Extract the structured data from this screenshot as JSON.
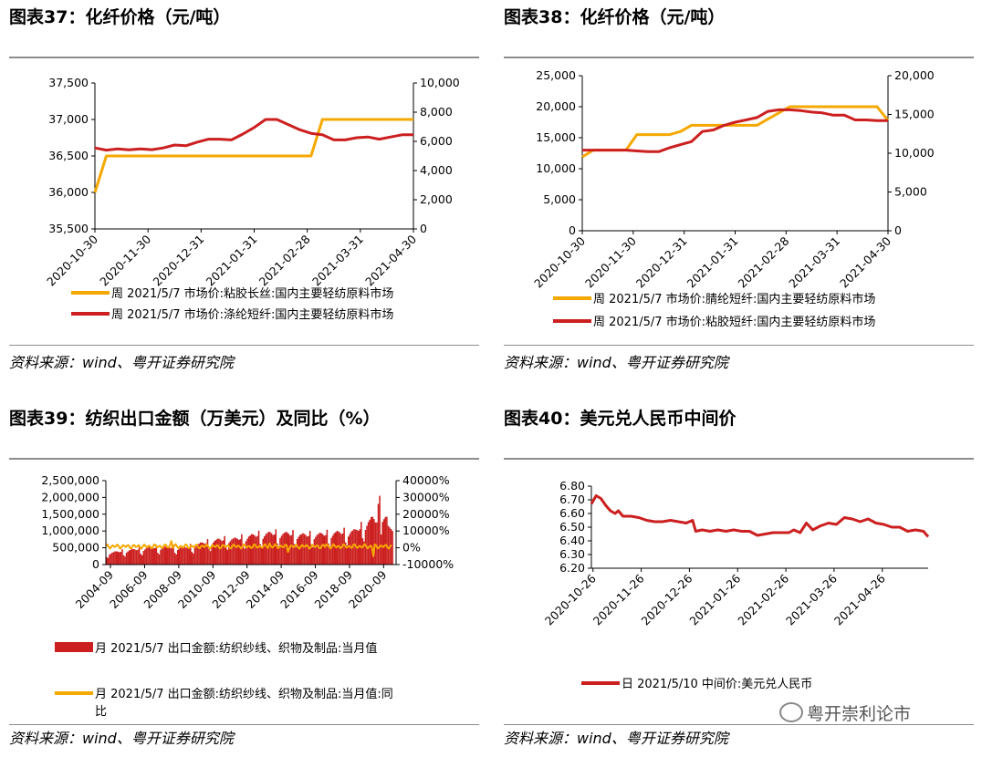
{
  "panels": [
    {
      "title": "图表37：化纤价格（元/吨）",
      "source": "资料来源：wind、粤开证券研究院"
    },
    {
      "title": "图表38：化纤价格（元/吨）",
      "source": "资料来源：wind、粤开证券研究院"
    },
    {
      "title": "图表39：纺织出口金额（万美元）及同比（%）",
      "source": "资料来源：wind、粤开证券研究院"
    },
    {
      "title": "图表40：美元兑人民币中间价",
      "source": "资料来源：wind、粤开证券研究院"
    }
  ],
  "watermark": "粤开崇利论市",
  "colors": {
    "orange": "#F5A800",
    "red": "#CC1F1F",
    "axis": "#000000"
  },
  "chart_data": [
    {
      "type": "line",
      "x_ticks": [
        "2020-10-30",
        "2020-11-30",
        "2020-12-31",
        "2021-01-31",
        "2021-02-28",
        "2021-03-31",
        "2021-04-30"
      ],
      "y_left_ticks": [
        "37,500",
        "37,000",
        "36,500",
        "36,000",
        "35,500"
      ],
      "y_left_range": [
        35500,
        37500
      ],
      "y_right_ticks": [
        "10,000",
        "8,000",
        "6,000",
        "4,000",
        "2,000",
        "0"
      ],
      "y_right_range": [
        0,
        10000
      ],
      "series": [
        {
          "name": "周 2021/5/7 市场价:粘胶长丝:国内主要轻纺原料市场",
          "axis": "left",
          "color": "orange",
          "points": [
            [
              0,
              36000
            ],
            [
              1,
              36500
            ],
            [
              2,
              36500
            ],
            [
              4,
              36500
            ],
            [
              6,
              36500
            ],
            [
              8,
              36500
            ],
            [
              10,
              36500
            ],
            [
              12,
              36500
            ],
            [
              14,
              36500
            ],
            [
              16,
              36500
            ],
            [
              18,
              36500
            ],
            [
              19,
              36500
            ],
            [
              20,
              37000
            ],
            [
              22,
              37000
            ],
            [
              24,
              37000
            ],
            [
              26,
              37000
            ],
            [
              28,
              37000
            ]
          ]
        },
        {
          "name": "周 2021/5/7 市场价:涤纶短纤:国内主要轻纺原料市场",
          "axis": "right",
          "color": "red",
          "points": [
            [
              0,
              5550
            ],
            [
              1,
              5400
            ],
            [
              2,
              5480
            ],
            [
              3,
              5420
            ],
            [
              4,
              5480
            ],
            [
              5,
              5430
            ],
            [
              6,
              5550
            ],
            [
              7,
              5750
            ],
            [
              8,
              5700
            ],
            [
              9,
              5950
            ],
            [
              10,
              6150
            ],
            [
              11,
              6150
            ],
            [
              12,
              6100
            ],
            [
              13,
              6500
            ],
            [
              14,
              6950
            ],
            [
              15,
              7500
            ],
            [
              16,
              7500
            ],
            [
              17,
              7150
            ],
            [
              18,
              6800
            ],
            [
              19,
              6550
            ],
            [
              20,
              6450
            ],
            [
              21,
              6100
            ],
            [
              22,
              6100
            ],
            [
              23,
              6250
            ],
            [
              24,
              6300
            ],
            [
              25,
              6150
            ],
            [
              26,
              6300
            ],
            [
              27,
              6450
            ],
            [
              28,
              6450
            ]
          ]
        }
      ]
    },
    {
      "type": "line",
      "x_ticks": [
        "2020-10-30",
        "2020-11-30",
        "2020-12-31",
        "2021-01-31",
        "2021-02-28",
        "2021-03-31",
        "2021-04-30"
      ],
      "y_left_ticks": [
        "25,000",
        "20,000",
        "15,000",
        "10,000",
        "5,000",
        "0"
      ],
      "y_left_range": [
        0,
        25000
      ],
      "y_right_ticks": [
        "20,000",
        "15,000",
        "10,000",
        "5,000",
        "0"
      ],
      "y_right_range": [
        0,
        20000
      ],
      "series": [
        {
          "name": "周 2021/5/7 市场价:腈纶短纤:国内主要轻纺原料市场",
          "axis": "left",
          "color": "orange",
          "points": [
            [
              0,
              11900
            ],
            [
              1,
              13000
            ],
            [
              2,
              13000
            ],
            [
              3,
              13000
            ],
            [
              4,
              13000
            ],
            [
              5,
              15500
            ],
            [
              6,
              15500
            ],
            [
              7,
              15500
            ],
            [
              8,
              15500
            ],
            [
              9,
              16000
            ],
            [
              10,
              17000
            ],
            [
              11,
              17000
            ],
            [
              12,
              17000
            ],
            [
              13,
              17000
            ],
            [
              14,
              17000
            ],
            [
              15,
              17000
            ],
            [
              16,
              17000
            ],
            [
              17,
              18000
            ],
            [
              18,
              19000
            ],
            [
              19,
              20000
            ],
            [
              20,
              20000
            ],
            [
              22,
              20000
            ],
            [
              24,
              20000
            ],
            [
              26,
              20000
            ],
            [
              27,
              20000
            ],
            [
              28,
              17800
            ]
          ]
        },
        {
          "name": "周 2021/5/7 市场价:粘胶短纤:国内主要轻纺原料市场",
          "axis": "right",
          "color": "red",
          "points": [
            [
              0,
              10400
            ],
            [
              1,
              10400
            ],
            [
              2,
              10400
            ],
            [
              3,
              10400
            ],
            [
              4,
              10400
            ],
            [
              5,
              10300
            ],
            [
              6,
              10200
            ],
            [
              7,
              10200
            ],
            [
              8,
              10700
            ],
            [
              9,
              11100
            ],
            [
              10,
              11500
            ],
            [
              11,
              12800
            ],
            [
              12,
              13000
            ],
            [
              13,
              13600
            ],
            [
              14,
              14000
            ],
            [
              15,
              14300
            ],
            [
              16,
              14600
            ],
            [
              17,
              15400
            ],
            [
              18,
              15600
            ],
            [
              19,
              15600
            ],
            [
              20,
              15500
            ],
            [
              21,
              15300
            ],
            [
              22,
              15200
            ],
            [
              23,
              14900
            ],
            [
              24,
              14900
            ],
            [
              25,
              14300
            ],
            [
              26,
              14300
            ],
            [
              27,
              14200
            ],
            [
              28,
              14200
            ]
          ]
        }
      ]
    },
    {
      "type": "bar",
      "x_ticks": [
        "2004-09",
        "2006-09",
        "2008-09",
        "2010-09",
        "2012-09",
        "2014-09",
        "2016-09",
        "2018-09",
        "2020-09"
      ],
      "y_left_ticks": [
        "2,500,000",
        "2,000,000",
        "1,500,000",
        "1,000,000",
        "500,000",
        "0"
      ],
      "y_left_range": [
        0,
        2500000
      ],
      "y_right_ticks": [
        "40000%",
        "30000%",
        "20000%",
        "10000%",
        "0%",
        "-10000%"
      ],
      "y_right_range": [
        -10000,
        40000
      ],
      "series": [
        {
          "name": "月 2021/5/7 出口金额:纺织纱线、织物及制品:当月值",
          "axis": "left",
          "color": "red",
          "kind": "bar",
          "annual_levels": [
            [
              2004,
              280000
            ],
            [
              2005,
              360000
            ],
            [
              2006,
              420000
            ],
            [
              2007,
              480000
            ],
            [
              2008,
              500000
            ],
            [
              2009,
              470000
            ],
            [
              2010,
              600000
            ],
            [
              2011,
              700000
            ],
            [
              2012,
              720000
            ],
            [
              2013,
              820000
            ],
            [
              2014,
              880000
            ],
            [
              2015,
              870000
            ],
            [
              2016,
              830000
            ],
            [
              2017,
              850000
            ],
            [
              2018,
              900000
            ],
            [
              2019,
              950000
            ],
            [
              2020,
              1300000
            ],
            [
              2021,
              1000000
            ]
          ],
          "peak": [
            2020.4,
            2050000
          ]
        },
        {
          "name": "月 2021/5/7 出口金额:纺织纱线、织物及制品:当月值:同比",
          "axis": "right",
          "color": "orange",
          "kind": "line",
          "typical_range": [
            -1000,
            1500
          ],
          "spikes": [
            [
              2008.2,
              4000
            ],
            [
              2014.0,
              2500
            ],
            [
              2015.1,
              -2500
            ],
            [
              2017.3,
              2000
            ],
            [
              2020.1,
              -5000
            ],
            [
              2021.3,
              29000
            ]
          ]
        }
      ]
    },
    {
      "type": "line",
      "x_ticks": [
        "2020-10-26",
        "2020-11-26",
        "2020-12-26",
        "2021-01-26",
        "2021-02-26",
        "2021-03-26",
        "2021-04-26"
      ],
      "y_left_ticks": [
        "6.80",
        "6.70",
        "6.60",
        "6.50",
        "6.40",
        "6.30",
        "6.20"
      ],
      "y_left_range": [
        6.2,
        6.8
      ],
      "series": [
        {
          "name": "日 2021/5/10 中间价:美元兑人民币",
          "axis": "left",
          "color": "red",
          "points": [
            [
              0,
              6.67
            ],
            [
              3,
              6.73
            ],
            [
              6,
              6.71
            ],
            [
              9,
              6.66
            ],
            [
              12,
              6.62
            ],
            [
              15,
              6.6
            ],
            [
              17,
              6.62
            ],
            [
              20,
              6.58
            ],
            [
              25,
              6.58
            ],
            [
              30,
              6.57
            ],
            [
              35,
              6.55
            ],
            [
              40,
              6.54
            ],
            [
              45,
              6.54
            ],
            [
              50,
              6.55
            ],
            [
              55,
              6.54
            ],
            [
              60,
              6.53
            ],
            [
              64,
              6.55
            ],
            [
              66,
              6.47
            ],
            [
              70,
              6.48
            ],
            [
              75,
              6.47
            ],
            [
              80,
              6.48
            ],
            [
              85,
              6.47
            ],
            [
              90,
              6.48
            ],
            [
              95,
              6.47
            ],
            [
              100,
              6.47
            ],
            [
              105,
              6.44
            ],
            [
              110,
              6.45
            ],
            [
              115,
              6.46
            ],
            [
              120,
              6.46
            ],
            [
              125,
              6.46
            ],
            [
              128,
              6.48
            ],
            [
              132,
              6.46
            ],
            [
              136,
              6.53
            ],
            [
              140,
              6.48
            ],
            [
              145,
              6.51
            ],
            [
              150,
              6.53
            ],
            [
              155,
              6.52
            ],
            [
              160,
              6.57
            ],
            [
              165,
              6.56
            ],
            [
              170,
              6.54
            ],
            [
              175,
              6.56
            ],
            [
              180,
              6.53
            ],
            [
              185,
              6.52
            ],
            [
              190,
              6.5
            ],
            [
              195,
              6.5
            ],
            [
              200,
              6.47
            ],
            [
              205,
              6.48
            ],
            [
              210,
              6.47
            ],
            [
              213,
              6.43
            ]
          ]
        }
      ],
      "x_max": 213
    }
  ]
}
